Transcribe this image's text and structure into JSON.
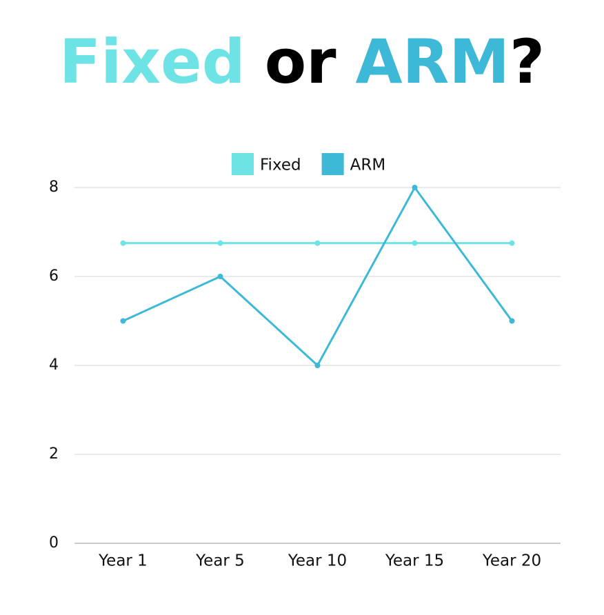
{
  "chart_data": {
    "type": "line",
    "title_parts": [
      {
        "text": "Fixed",
        "color": "#6de3e6"
      },
      {
        "text": "or",
        "color": "#000000"
      },
      {
        "text": "ARM",
        "color": "#3db8d6"
      },
      {
        "text": "?",
        "color": "#000000"
      }
    ],
    "categories": [
      "Year 1",
      "Year 5",
      "Year 10",
      "Year 15",
      "Year 20"
    ],
    "series": [
      {
        "name": "Fixed",
        "color": "#6de3e6",
        "values": [
          6.75,
          6.75,
          6.75,
          6.75,
          6.75
        ]
      },
      {
        "name": "ARM",
        "color": "#3db8d6",
        "values": [
          5,
          6,
          4,
          8,
          5
        ]
      }
    ],
    "ylim": [
      0,
      8
    ],
    "yticks": [
      0,
      2,
      4,
      6,
      8
    ],
    "grid": true,
    "legend": "top"
  }
}
